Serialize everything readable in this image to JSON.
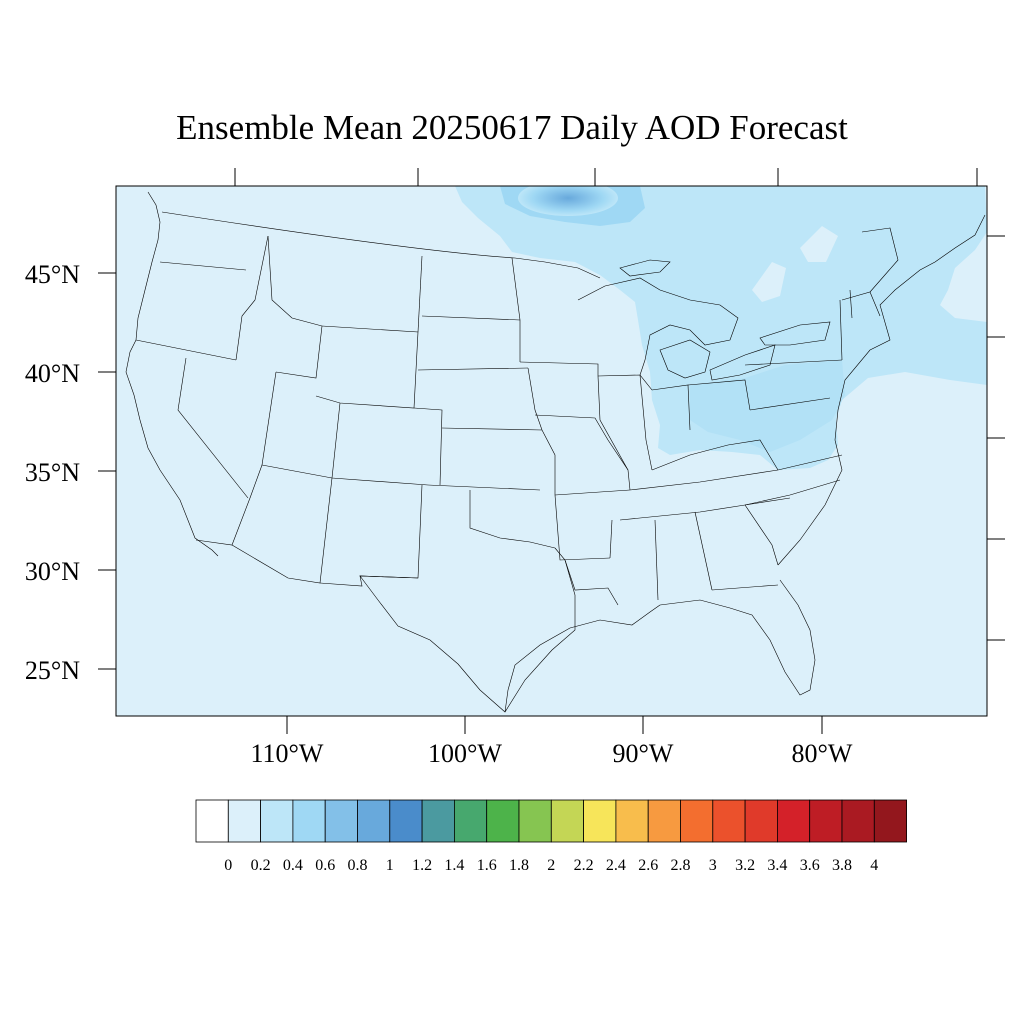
{
  "title": "Ensemble Mean 20250617 Daily AOD Forecast",
  "map": {
    "lat_labels": [
      "45°N",
      "40°N",
      "35°N",
      "30°N",
      "25°N"
    ],
    "lon_labels": [
      "110°W",
      "100°W",
      "90°W",
      "80°W"
    ],
    "lat_values": [
      45,
      40,
      35,
      30,
      25
    ],
    "lon_values": [
      -110,
      -100,
      -90,
      -80
    ],
    "extent": {
      "lon_min": -119,
      "lon_max": -70,
      "lat_min": 22.6,
      "lat_max": 49.5
    },
    "background_color": "#dcf0fa"
  },
  "colorbar": {
    "labels": [
      "0",
      "0.2",
      "0.4",
      "0.6",
      "0.8",
      "1",
      "1.2",
      "1.4",
      "1.6",
      "1.8",
      "2",
      "2.2",
      "2.4",
      "2.6",
      "2.8",
      "3",
      "3.2",
      "3.4",
      "3.6",
      "3.8",
      "4"
    ],
    "colors": [
      "#ffffff",
      "#dcf0fa",
      "#bde6f8",
      "#9fd8f4",
      "#83c0e8",
      "#68a9dc",
      "#4a8ccb",
      "#4b9aa0",
      "#47a86e",
      "#4db34a",
      "#86c551",
      "#c4d655",
      "#f7e55a",
      "#f8bd4c",
      "#f79a40",
      "#f36e2f",
      "#eb512c",
      "#e03a2a",
      "#d42129",
      "#be1d25",
      "#aa1a22",
      "#93171d"
    ]
  }
}
